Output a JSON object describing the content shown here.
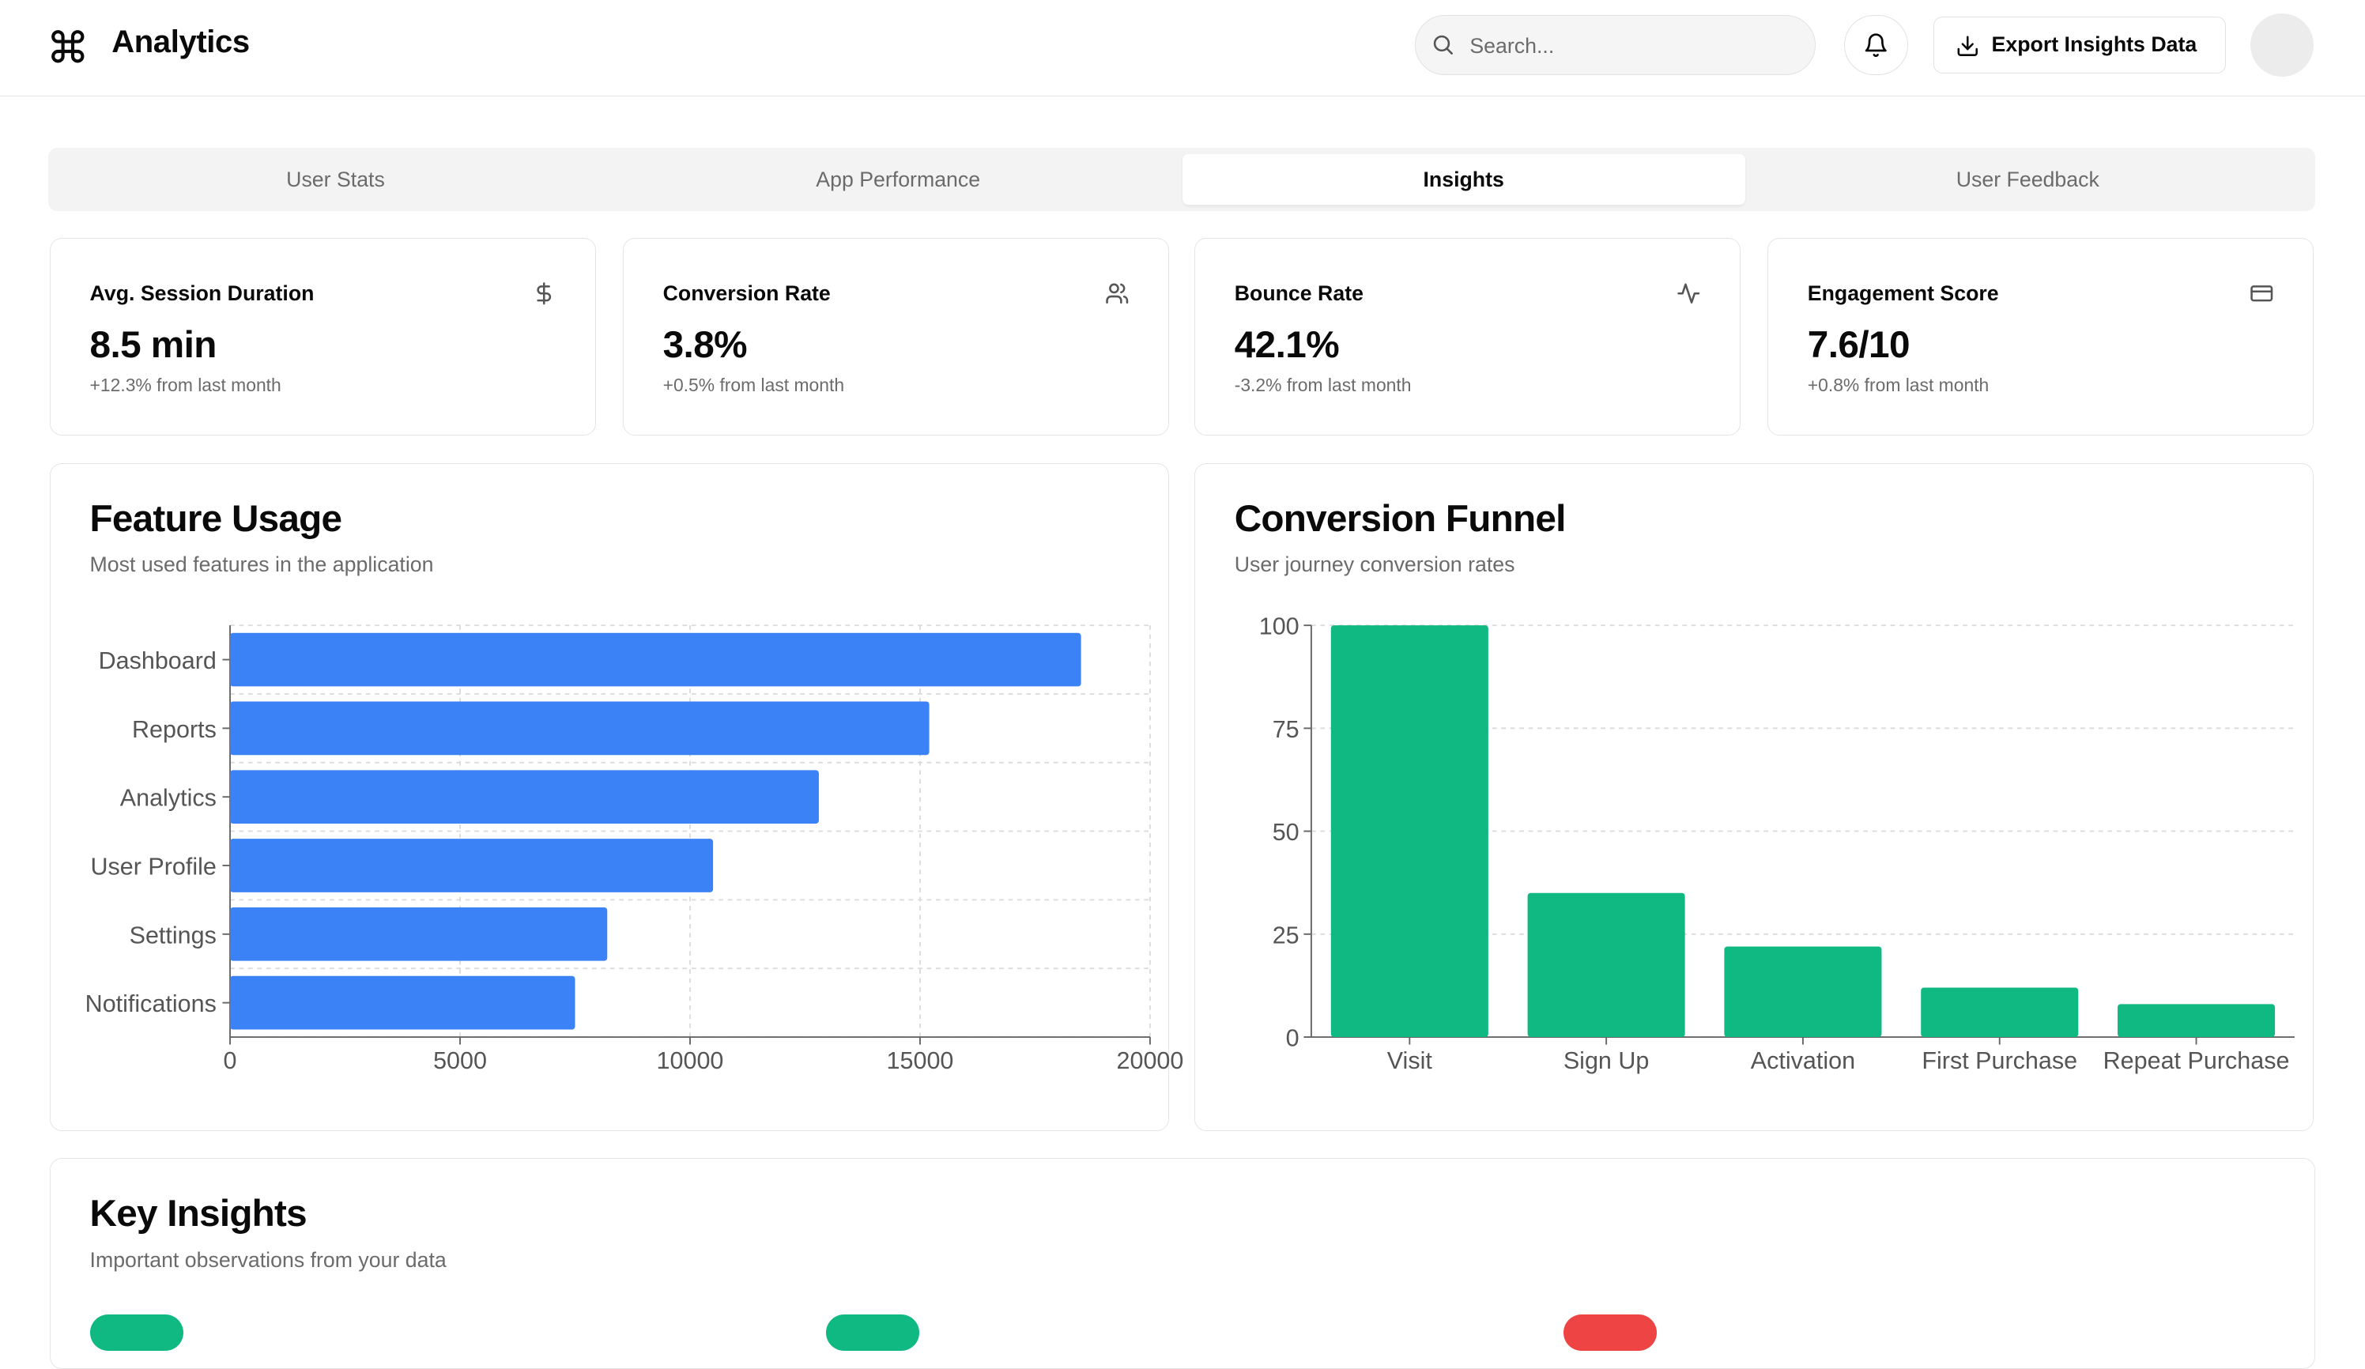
{
  "header": {
    "title": "Analytics",
    "search_placeholder": "Search...",
    "export_label": "Export Insights Data"
  },
  "tabs": [
    {
      "label": "User Stats",
      "active": false
    },
    {
      "label": "App Performance",
      "active": false
    },
    {
      "label": "Insights",
      "active": true
    },
    {
      "label": "User Feedback",
      "active": false
    }
  ],
  "stats": [
    {
      "title": "Avg. Session Duration",
      "value": "8.5 min",
      "change": "+12.3% from last month",
      "icon": "dollar-icon"
    },
    {
      "title": "Conversion Rate",
      "value": "3.8%",
      "change": "+0.5% from last month",
      "icon": "users-icon"
    },
    {
      "title": "Bounce Rate",
      "value": "42.1%",
      "change": "-3.2% from last month",
      "icon": "activity-icon"
    },
    {
      "title": "Engagement Score",
      "value": "7.6/10",
      "change": "+0.8% from last month",
      "icon": "credit-card-icon"
    }
  ],
  "feature_usage": {
    "title": "Feature Usage",
    "subtitle": "Most used features in the application"
  },
  "conversion_funnel": {
    "title": "Conversion Funnel",
    "subtitle": "User journey conversion rates"
  },
  "key_insights": {
    "title": "Key Insights",
    "subtitle": "Important observations from your data"
  },
  "colors": {
    "feature_bar": "#3b82f6",
    "funnel_bar": "#10b981",
    "badge_green": "#10b981",
    "badge_red": "#ef4444"
  },
  "chart_data": [
    {
      "type": "bar",
      "orientation": "horizontal",
      "categories": [
        "Dashboard",
        "Reports",
        "Analytics",
        "User Profile",
        "Settings",
        "Notifications"
      ],
      "values": [
        18500,
        15200,
        12800,
        10500,
        8200,
        7500
      ],
      "xlim": [
        0,
        20000
      ],
      "xticks": [
        0,
        5000,
        10000,
        15000,
        20000
      ],
      "grid": true
    },
    {
      "type": "bar",
      "orientation": "vertical",
      "categories": [
        "Visit",
        "Sign Up",
        "Activation",
        "First Purchase",
        "Repeat Purchase"
      ],
      "values": [
        100,
        35,
        22,
        12,
        8
      ],
      "ylim": [
        0,
        100
      ],
      "yticks": [
        0,
        25,
        50,
        75,
        100
      ],
      "grid": true
    }
  ]
}
